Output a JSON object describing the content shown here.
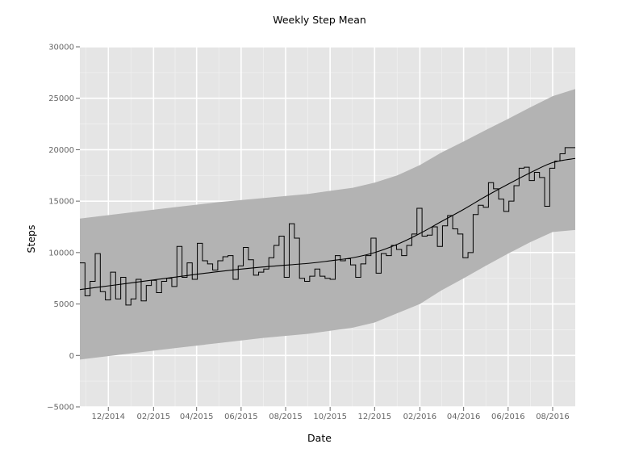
{
  "chart_data": {
    "type": "line",
    "title": "Weekly Step Mean",
    "xlabel": "Date",
    "ylabel": "Steps",
    "ylim": [
      -5000,
      30000
    ],
    "xlim": [
      "2014-10-23",
      "2016-09-01"
    ],
    "grid": true,
    "y_ticks": [
      -5000,
      0,
      5000,
      10000,
      15000,
      20000,
      25000,
      30000
    ],
    "y_tick_labels": [
      "−5000",
      "0",
      "5000",
      "10000",
      "15000",
      "20000",
      "25000",
      "30000"
    ],
    "x_ticks": [
      "2014-12-01",
      "2015-02-01",
      "2015-04-01",
      "2015-06-01",
      "2015-08-01",
      "2015-10-01",
      "2015-12-01",
      "2016-02-01",
      "2016-04-01",
      "2016-06-01",
      "2016-08-01"
    ],
    "x_tick_labels": [
      "12/2014",
      "02/2015",
      "04/2015",
      "06/2015",
      "08/2015",
      "10/2015",
      "12/2015",
      "02/2016",
      "04/2016",
      "06/2016",
      "08/2016"
    ],
    "colors": {
      "panel": "#e5e5e5",
      "grid_major": "#ffffff",
      "grid_minor": "#f0f0f0",
      "band": "#b3b3b3",
      "line": "#000000"
    },
    "series": [
      {
        "style": "step",
        "x": [
          "2014-10-23",
          "2014-10-30",
          "2014-11-06",
          "2014-11-13",
          "2014-11-20",
          "2014-11-27",
          "2014-12-04",
          "2014-12-11",
          "2014-12-18",
          "2014-12-25",
          "2015-01-01",
          "2015-01-08",
          "2015-01-15",
          "2015-01-22",
          "2015-01-29",
          "2015-02-05",
          "2015-02-12",
          "2015-02-19",
          "2015-02-26",
          "2015-03-05",
          "2015-03-12",
          "2015-03-19",
          "2015-03-26",
          "2015-04-02",
          "2015-04-09",
          "2015-04-16",
          "2015-04-23",
          "2015-04-30",
          "2015-05-07",
          "2015-05-14",
          "2015-05-21",
          "2015-05-28",
          "2015-06-04",
          "2015-06-11",
          "2015-06-18",
          "2015-06-25",
          "2015-07-02",
          "2015-07-09",
          "2015-07-16",
          "2015-07-23",
          "2015-07-30",
          "2015-08-06",
          "2015-08-13",
          "2015-08-20",
          "2015-08-27",
          "2015-09-03",
          "2015-09-10",
          "2015-09-17",
          "2015-09-24",
          "2015-10-01",
          "2015-10-08",
          "2015-10-15",
          "2015-10-22",
          "2015-10-29",
          "2015-11-05",
          "2015-11-12",
          "2015-11-19",
          "2015-11-26",
          "2015-12-03",
          "2015-12-10",
          "2015-12-17",
          "2015-12-24",
          "2015-12-31",
          "2016-01-07",
          "2016-01-14",
          "2016-01-21",
          "2016-01-28",
          "2016-02-04",
          "2016-02-11",
          "2016-02-18",
          "2016-02-25",
          "2016-03-03",
          "2016-03-10",
          "2016-03-17",
          "2016-03-24",
          "2016-03-31",
          "2016-04-07",
          "2016-04-14",
          "2016-04-21",
          "2016-04-28",
          "2016-05-05",
          "2016-05-12",
          "2016-05-19",
          "2016-05-26",
          "2016-06-02",
          "2016-06-09",
          "2016-06-16",
          "2016-06-23",
          "2016-06-30",
          "2016-07-07",
          "2016-07-14",
          "2016-07-21",
          "2016-07-28",
          "2016-08-04",
          "2016-08-11",
          "2016-08-18",
          "2016-08-25"
        ],
        "values": [
          9000,
          5800,
          7200,
          9900,
          6200,
          5400,
          8100,
          5500,
          7600,
          4900,
          5500,
          7400,
          5300,
          6800,
          7300,
          6100,
          7200,
          7500,
          6700,
          10600,
          7600,
          9000,
          7400,
          10900,
          9200,
          8900,
          8300,
          9200,
          9600,
          9700,
          7400,
          8700,
          10500,
          9300,
          7800,
          8100,
          8400,
          9500,
          10700,
          11600,
          7600,
          12800,
          11400,
          7500,
          7200,
          7700,
          8400,
          7700,
          7500,
          7400,
          9700,
          9200,
          9400,
          8800,
          7600,
          8900,
          9700,
          11400,
          8000,
          9900,
          9700,
          10700,
          10300,
          9700,
          10700,
          11800,
          14300,
          11600,
          11700,
          12500,
          10600,
          12600,
          13600,
          12300,
          11800,
          9500,
          10000,
          13700,
          14600,
          14400,
          16800,
          16200,
          15200,
          14000,
          15000,
          16500,
          18200,
          18300,
          17000,
          17800,
          17300,
          14500,
          18200,
          18900,
          19600,
          20200,
          20200
        ]
      },
      {
        "style": "smooth",
        "x": [
          "2014-10-23",
          "2015-01-01",
          "2015-03-01",
          "2015-05-01",
          "2015-07-01",
          "2015-09-01",
          "2015-10-01",
          "2015-11-01",
          "2015-12-01",
          "2016-01-01",
          "2016-02-01",
          "2016-03-01",
          "2016-04-01",
          "2016-05-01",
          "2016-06-01",
          "2016-07-01",
          "2016-08-01",
          "2016-09-01"
        ],
        "values": [
          6400,
          7050,
          7600,
          8150,
          8600,
          8950,
          9200,
          9500,
          10000,
          10800,
          11850,
          13000,
          14200,
          15450,
          16650,
          17750,
          18750,
          19150
        ]
      }
    ],
    "band": {
      "x": [
        "2014-10-23",
        "2015-01-01",
        "2015-03-01",
        "2015-05-01",
        "2015-07-01",
        "2015-09-01",
        "2015-10-01",
        "2015-11-01",
        "2015-12-01",
        "2016-01-01",
        "2016-02-01",
        "2016-03-01",
        "2016-04-01",
        "2016-05-01",
        "2016-06-01",
        "2016-07-01",
        "2016-08-01",
        "2016-09-01"
      ],
      "upper": [
        13300,
        13900,
        14400,
        14900,
        15300,
        15700,
        16000,
        16300,
        16800,
        17500,
        18500,
        19700,
        20800,
        21900,
        23000,
        24100,
        25200,
        25900
      ],
      "lower": [
        -400,
        200,
        700,
        1200,
        1700,
        2100,
        2400,
        2700,
        3200,
        4100,
        5000,
        6300,
        7500,
        8700,
        9900,
        11000,
        12000,
        12200
      ]
    }
  }
}
